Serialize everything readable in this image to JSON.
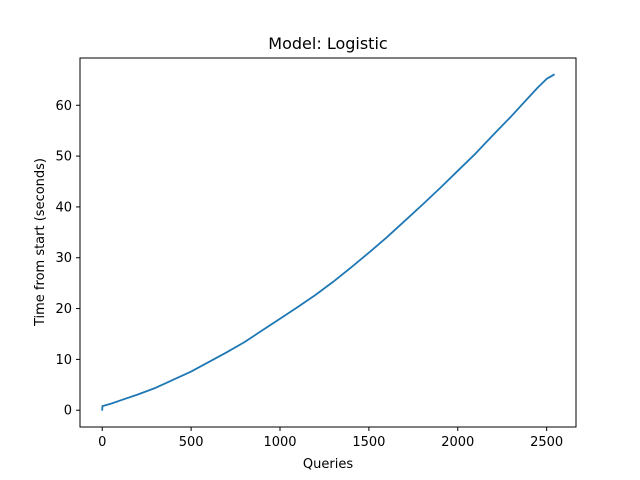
{
  "chart_data": {
    "type": "line",
    "title": "Model: Logistic",
    "xlabel": "Queries",
    "ylabel": "Time from start (seconds)",
    "xlim": [
      -125,
      2665
    ],
    "ylim": [
      -3.3,
      69.3
    ],
    "xticks": [
      0,
      500,
      1000,
      1500,
      2000,
      2500
    ],
    "yticks": [
      0,
      10,
      20,
      30,
      40,
      50,
      60
    ],
    "grid": false,
    "legend": "none",
    "line_color": "#1f77b4",
    "series": [
      {
        "x": [
          0,
          1,
          50,
          100,
          200,
          300,
          400,
          500,
          600,
          700,
          800,
          900,
          1000,
          1100,
          1200,
          1300,
          1400,
          1500,
          1600,
          1700,
          1800,
          1900,
          2000,
          2100,
          2200,
          2300,
          2400,
          2450,
          2500,
          2540
        ],
        "y": [
          0.1,
          0.8,
          1.3,
          1.9,
          3.1,
          4.4,
          6.0,
          7.6,
          9.5,
          11.4,
          13.4,
          15.7,
          18.0,
          20.3,
          22.7,
          25.3,
          28.1,
          31.0,
          34.0,
          37.2,
          40.4,
          43.7,
          47.1,
          50.5,
          54.2,
          57.8,
          61.6,
          63.5,
          65.2,
          66.0
        ]
      }
    ]
  }
}
